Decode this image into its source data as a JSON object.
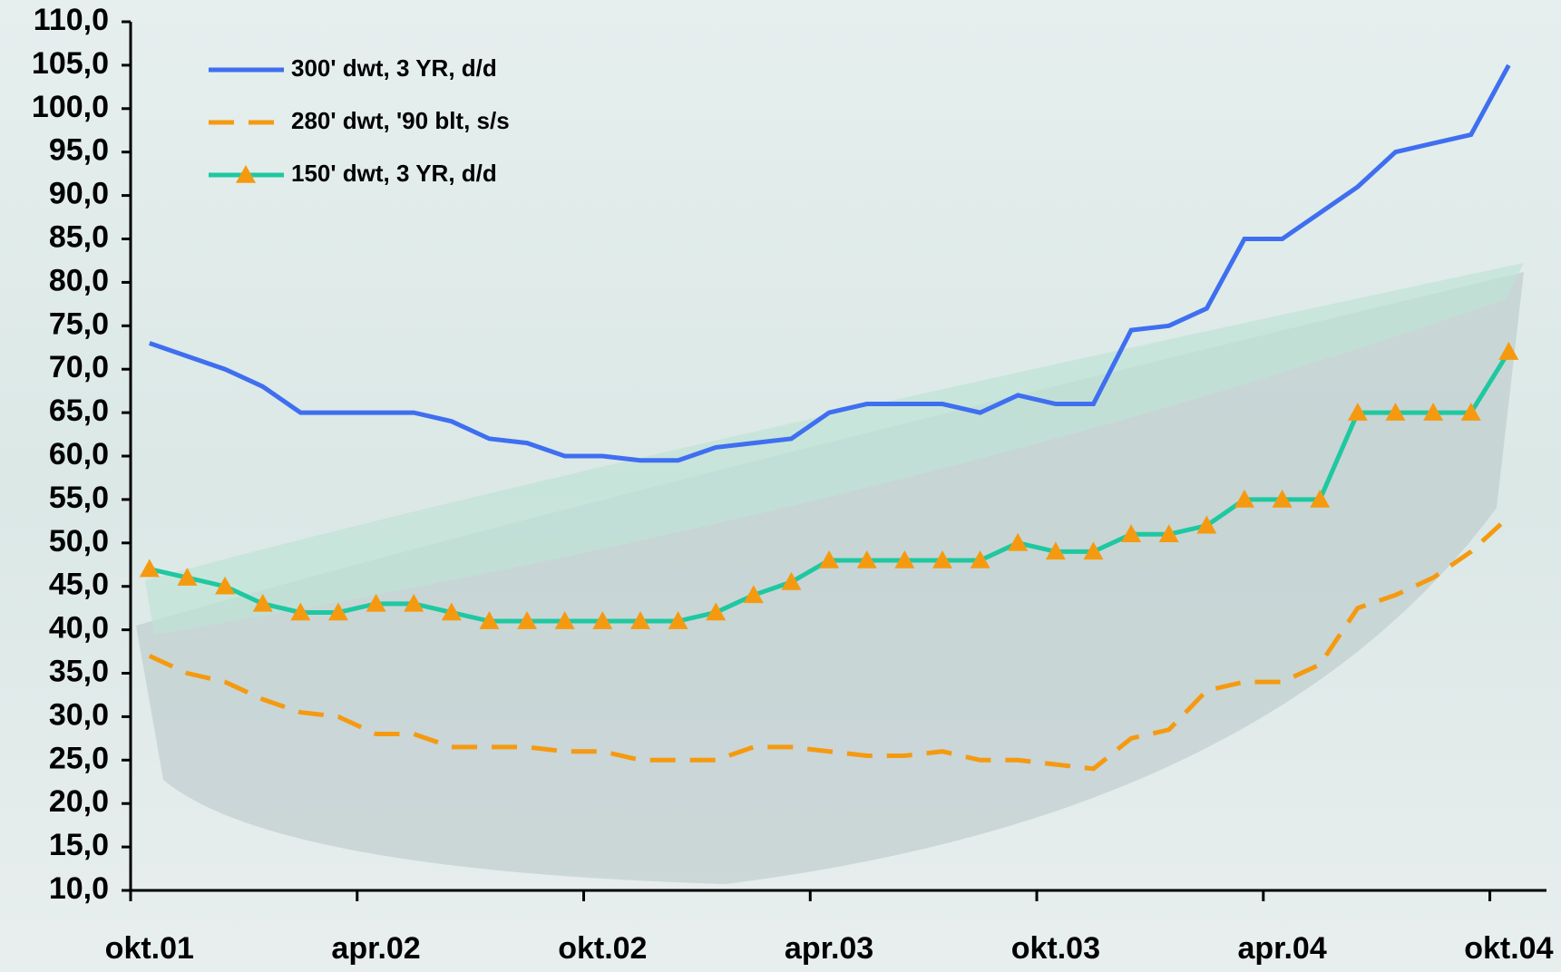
{
  "chart_data": {
    "type": "line",
    "categories": [
      "okt.01",
      null,
      null,
      null,
      null,
      null,
      "apr.02",
      null,
      null,
      null,
      null,
      null,
      "okt.02",
      null,
      null,
      null,
      null,
      null,
      "apr.03",
      null,
      null,
      null,
      null,
      null,
      "okt.03",
      null,
      null,
      null,
      null,
      null,
      "apr.04",
      null,
      null,
      null,
      null,
      null,
      "okt.04"
    ],
    "series": [
      {
        "name": "300' dwt, 3 YR, d/d",
        "color": "#3f6ff0",
        "dash": false,
        "marker": false,
        "values": [
          73,
          71.5,
          70,
          68,
          65,
          65,
          65,
          65,
          64,
          62,
          61.5,
          60,
          60,
          59.5,
          59.5,
          61,
          61.5,
          62,
          65,
          66,
          66,
          66,
          65,
          67,
          66,
          66,
          74.5,
          75,
          77,
          85,
          85,
          88,
          91,
          95,
          96,
          97,
          105
        ]
      },
      {
        "name": "280' dwt, '90 blt, s/s",
        "color": "#f59a10",
        "dash": true,
        "marker": false,
        "values": [
          37,
          35,
          34,
          32,
          30.5,
          30,
          28,
          28,
          26.5,
          26.5,
          26.5,
          26,
          26,
          25,
          25,
          25,
          26.5,
          26.5,
          26,
          25.5,
          25.5,
          26,
          25,
          25,
          24.5,
          24,
          27.5,
          28.5,
          33,
          34,
          34,
          36,
          42.5,
          44,
          46,
          49,
          53
        ]
      },
      {
        "name": "150' dwt, 3 YR, d/d",
        "color": "#1fc8a0",
        "marker_color": "#f59a10",
        "dash": false,
        "marker": true,
        "values": [
          47,
          46,
          45,
          43,
          42,
          42,
          43,
          43,
          42,
          41,
          41,
          41,
          41,
          41,
          41,
          42,
          44,
          45.5,
          48,
          48,
          48,
          48,
          48,
          50,
          49,
          49,
          51,
          51,
          52,
          55,
          55,
          55,
          65,
          65,
          65,
          65,
          72
        ]
      }
    ],
    "ylim": [
      10,
      110
    ],
    "yticks": [
      {
        "value": 10,
        "label": "10,0"
      },
      {
        "value": 15,
        "label": "15,0"
      },
      {
        "value": 20,
        "label": "20,0"
      },
      {
        "value": 25,
        "label": "25,0"
      },
      {
        "value": 30,
        "label": "30,0"
      },
      {
        "value": 35,
        "label": "35,0"
      },
      {
        "value": 40,
        "label": "40,0"
      },
      {
        "value": 45,
        "label": "45,0"
      },
      {
        "value": 50,
        "label": "50,0"
      },
      {
        "value": 55,
        "label": "55,0"
      },
      {
        "value": 60,
        "label": "60,0"
      },
      {
        "value": 65,
        "label": "65,0"
      },
      {
        "value": 70,
        "label": "70,0"
      },
      {
        "value": 75,
        "label": "75,0"
      },
      {
        "value": 80,
        "label": "80,0"
      },
      {
        "value": 85,
        "label": "85,0"
      },
      {
        "value": 90,
        "label": "90,0"
      },
      {
        "value": 95,
        "label": "95,0"
      },
      {
        "value": 100,
        "label": "100,0"
      },
      {
        "value": 105,
        "label": "105,0"
      },
      {
        "value": 110,
        "label": "110,0"
      }
    ],
    "legend": "upper left"
  }
}
